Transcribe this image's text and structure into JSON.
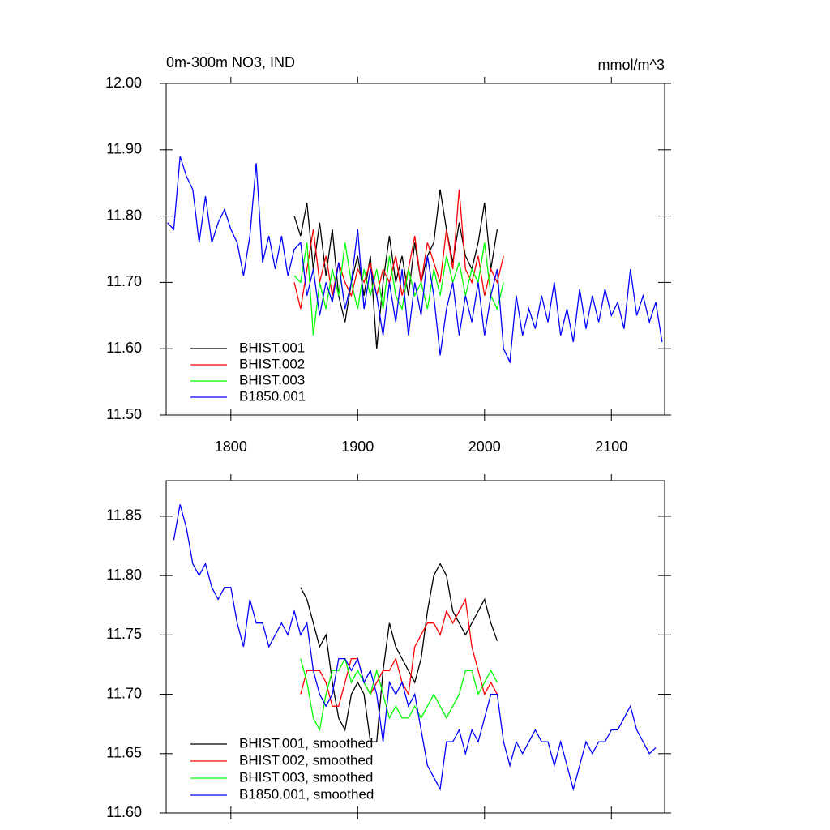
{
  "chart_data": [
    {
      "type": "line",
      "title": "0m-300m NO3, IND",
      "units": "mmol/m^3",
      "x": [
        1750,
        1755,
        1760,
        1765,
        1770,
        1775,
        1780,
        1785,
        1790,
        1795,
        1800,
        1805,
        1810,
        1815,
        1820,
        1825,
        1830,
        1835,
        1840,
        1845,
        1850,
        1855,
        1860,
        1865,
        1870,
        1875,
        1880,
        1885,
        1890,
        1895,
        1900,
        1905,
        1910,
        1915,
        1920,
        1925,
        1930,
        1935,
        1940,
        1945,
        1950,
        1955,
        1960,
        1965,
        1970,
        1975,
        1980,
        1985,
        1990,
        1995,
        2000,
        2005,
        2010,
        2015,
        2020,
        2025,
        2030,
        2035,
        2040,
        2045,
        2050,
        2055,
        2060,
        2065,
        2070,
        2075,
        2080,
        2085,
        2090,
        2095,
        2100,
        2105,
        2110,
        2115,
        2120,
        2125,
        2130,
        2135,
        2140
      ],
      "xlim": [
        1749,
        2142
      ],
      "xticks": [
        1800,
        1900,
        2000,
        2100
      ],
      "xtick_labels": true,
      "ylim": [
        11.5,
        12.0
      ],
      "yticks": [
        {
          "value": 11.5,
          "label": "11.50"
        },
        {
          "value": 11.6,
          "label": "11.60"
        },
        {
          "value": 11.7,
          "label": "11.70"
        },
        {
          "value": 11.8,
          "label": "11.80"
        },
        {
          "value": 11.9,
          "label": "11.90"
        },
        {
          "value": 12.0,
          "label": "12.00"
        }
      ],
      "legend": "lower-left",
      "series": [
        {
          "name": "BHIST.001",
          "color": "#000000",
          "values": [
            null,
            null,
            null,
            null,
            null,
            null,
            null,
            null,
            null,
            null,
            null,
            null,
            null,
            null,
            null,
            null,
            null,
            null,
            null,
            null,
            11.8,
            11.77,
            11.82,
            11.72,
            11.79,
            11.71,
            11.78,
            11.68,
            11.64,
            11.7,
            11.74,
            11.68,
            11.74,
            11.6,
            11.7,
            11.77,
            11.7,
            11.74,
            11.68,
            11.76,
            11.7,
            11.74,
            11.76,
            11.84,
            11.78,
            11.73,
            11.79,
            11.74,
            11.72,
            11.76,
            11.82,
            11.72,
            11.78,
            null,
            null,
            null,
            null,
            null,
            null,
            null,
            null,
            null,
            null,
            null,
            null,
            null,
            null,
            null,
            null,
            null,
            null,
            null,
            null,
            null,
            null,
            null,
            null,
            null,
            null
          ]
        },
        {
          "name": "BHIST.002",
          "color": "#ff0000",
          "values": [
            null,
            null,
            null,
            null,
            null,
            null,
            null,
            null,
            null,
            null,
            null,
            null,
            null,
            null,
            null,
            null,
            null,
            null,
            null,
            null,
            11.7,
            11.66,
            11.72,
            11.78,
            11.7,
            11.74,
            11.68,
            11.73,
            11.7,
            11.68,
            11.72,
            11.7,
            11.73,
            11.68,
            11.72,
            11.7,
            11.74,
            11.68,
            11.72,
            11.77,
            11.7,
            11.76,
            11.73,
            11.7,
            11.78,
            11.72,
            11.84,
            11.72,
            11.7,
            11.74,
            11.68,
            11.72,
            11.7,
            11.74,
            null,
            null,
            null,
            null,
            null,
            null,
            null,
            null,
            null,
            null,
            null,
            null,
            null,
            null,
            null,
            null,
            null,
            null,
            null,
            null,
            null,
            null,
            null,
            null,
            null
          ]
        },
        {
          "name": "BHIST.003",
          "color": "#00ff00",
          "values": [
            null,
            null,
            null,
            null,
            null,
            null,
            null,
            null,
            null,
            null,
            null,
            null,
            null,
            null,
            null,
            null,
            null,
            null,
            null,
            null,
            11.71,
            11.7,
            11.76,
            11.62,
            11.7,
            11.66,
            11.72,
            11.68,
            11.76,
            11.7,
            11.66,
            11.72,
            11.68,
            11.72,
            11.66,
            11.74,
            11.68,
            11.66,
            11.72,
            11.68,
            11.7,
            11.66,
            11.72,
            11.68,
            11.74,
            11.7,
            11.73,
            11.68,
            11.72,
            11.7,
            11.76,
            11.68,
            11.66,
            11.7,
            null,
            null,
            null,
            null,
            null,
            null,
            null,
            null,
            null,
            null,
            null,
            null,
            null,
            null,
            null,
            null,
            null,
            null,
            null,
            null,
            null,
            null,
            null,
            null,
            null
          ]
        },
        {
          "name": "B1850.001",
          "color": "#0000ff",
          "values": [
            11.79,
            11.78,
            11.89,
            11.86,
            11.84,
            11.76,
            11.83,
            11.76,
            11.79,
            11.81,
            11.78,
            11.76,
            11.71,
            11.77,
            11.88,
            11.73,
            11.77,
            11.72,
            11.77,
            11.71,
            11.75,
            11.76,
            11.68,
            11.72,
            11.65,
            11.7,
            11.67,
            11.73,
            11.66,
            11.7,
            11.78,
            11.66,
            11.72,
            11.68,
            11.62,
            11.7,
            11.64,
            11.72,
            11.62,
            11.7,
            11.65,
            11.74,
            11.68,
            11.59,
            11.66,
            11.7,
            11.62,
            11.68,
            11.64,
            11.7,
            11.62,
            11.68,
            11.72,
            11.6,
            11.58,
            11.68,
            11.62,
            11.66,
            11.63,
            11.68,
            11.64,
            11.7,
            11.62,
            11.66,
            11.61,
            11.69,
            11.63,
            11.68,
            11.64,
            11.69,
            11.65,
            11.67,
            11.63,
            11.72,
            11.65,
            11.68,
            11.64,
            11.67,
            11.61
          ]
        }
      ]
    },
    {
      "type": "line",
      "x": [
        1750,
        1755,
        1760,
        1765,
        1770,
        1775,
        1780,
        1785,
        1790,
        1795,
        1800,
        1805,
        1810,
        1815,
        1820,
        1825,
        1830,
        1835,
        1840,
        1845,
        1850,
        1855,
        1860,
        1865,
        1870,
        1875,
        1880,
        1885,
        1890,
        1895,
        1900,
        1905,
        1910,
        1915,
        1920,
        1925,
        1930,
        1935,
        1940,
        1945,
        1950,
        1955,
        1960,
        1965,
        1970,
        1975,
        1980,
        1985,
        1990,
        1995,
        2000,
        2005,
        2010,
        2015,
        2020,
        2025,
        2030,
        2035,
        2040,
        2045,
        2050,
        2055,
        2060,
        2065,
        2070,
        2075,
        2080,
        2085,
        2090,
        2095,
        2100,
        2105,
        2110,
        2115,
        2120,
        2125,
        2130,
        2135,
        2140
      ],
      "xlim": [
        1749,
        2142
      ],
      "xticks": [
        1800,
        1900,
        2000,
        2100
      ],
      "xtick_labels": false,
      "ylim": [
        11.6,
        11.88
      ],
      "yticks": [
        {
          "value": 11.6,
          "label": "11.60"
        },
        11.65,
        {
          "value": 11.7,
          "label": "11.70"
        },
        11.75,
        {
          "value": 11.8,
          "label": "11.80"
        },
        11.85
      ],
      "legend": "lower-left",
      "series": [
        {
          "name": "BHIST.001, smoothed",
          "color": "#000000",
          "values": [
            null,
            null,
            null,
            null,
            null,
            null,
            null,
            null,
            null,
            null,
            null,
            null,
            null,
            null,
            null,
            null,
            null,
            null,
            null,
            null,
            null,
            11.79,
            11.78,
            11.76,
            11.74,
            11.75,
            11.71,
            11.68,
            11.67,
            11.7,
            11.71,
            11.7,
            11.66,
            11.66,
            11.72,
            11.76,
            11.74,
            11.73,
            11.72,
            11.71,
            11.73,
            11.77,
            11.8,
            11.81,
            11.8,
            11.77,
            11.76,
            11.75,
            11.76,
            11.77,
            11.78,
            11.76,
            11.745,
            null,
            null,
            null,
            null,
            null,
            null,
            null,
            null,
            null,
            null,
            null,
            null,
            null,
            null,
            null,
            null,
            null,
            null,
            null,
            null,
            null,
            null,
            null,
            null,
            null,
            null
          ]
        },
        {
          "name": "BHIST.002, smoothed",
          "color": "#ff0000",
          "values": [
            null,
            null,
            null,
            null,
            null,
            null,
            null,
            null,
            null,
            null,
            null,
            null,
            null,
            null,
            null,
            null,
            null,
            null,
            null,
            null,
            null,
            11.7,
            11.72,
            11.72,
            11.72,
            11.71,
            11.69,
            11.69,
            11.71,
            11.73,
            11.73,
            11.71,
            11.7,
            11.71,
            11.72,
            11.72,
            11.73,
            11.71,
            11.7,
            11.74,
            11.75,
            11.76,
            11.76,
            11.75,
            11.77,
            11.76,
            11.77,
            11.78,
            11.74,
            11.72,
            11.7,
            11.71,
            11.7,
            null,
            null,
            null,
            null,
            null,
            null,
            null,
            null,
            null,
            null,
            null,
            null,
            null,
            null,
            null,
            null,
            null,
            null,
            null,
            null,
            null,
            null,
            null,
            null,
            null,
            null
          ]
        },
        {
          "name": "BHIST.003, smoothed",
          "color": "#00ff00",
          "values": [
            null,
            null,
            null,
            null,
            null,
            null,
            null,
            null,
            null,
            null,
            null,
            null,
            null,
            null,
            null,
            null,
            null,
            null,
            null,
            null,
            null,
            11.73,
            11.71,
            11.68,
            11.67,
            11.7,
            11.72,
            11.72,
            11.73,
            11.71,
            11.72,
            11.71,
            11.7,
            11.72,
            11.7,
            11.68,
            11.69,
            11.68,
            11.68,
            11.69,
            11.68,
            11.69,
            11.7,
            11.69,
            11.68,
            11.69,
            11.7,
            11.72,
            11.72,
            11.7,
            11.71,
            11.72,
            11.71,
            null,
            null,
            null,
            null,
            null,
            null,
            null,
            null,
            null,
            null,
            null,
            null,
            null,
            null,
            null,
            null,
            null,
            null,
            null,
            null,
            null,
            null,
            null,
            null,
            null,
            null
          ]
        },
        {
          "name": "B1850.001, smoothed",
          "color": "#0000ff",
          "values": [
            null,
            11.83,
            11.86,
            11.84,
            11.81,
            11.8,
            11.81,
            11.79,
            11.78,
            11.79,
            11.79,
            11.76,
            11.74,
            11.78,
            11.76,
            11.76,
            11.74,
            11.75,
            11.76,
            11.75,
            11.77,
            11.75,
            11.76,
            11.72,
            11.7,
            11.69,
            11.7,
            11.73,
            11.73,
            11.72,
            11.73,
            11.71,
            11.72,
            11.7,
            11.66,
            11.71,
            11.7,
            11.71,
            11.69,
            11.7,
            11.67,
            11.64,
            11.63,
            11.62,
            11.66,
            11.66,
            11.67,
            11.65,
            11.67,
            11.66,
            11.68,
            11.7,
            11.7,
            11.66,
            11.64,
            11.66,
            11.65,
            11.66,
            11.67,
            11.66,
            11.66,
            11.64,
            11.66,
            11.64,
            11.62,
            11.64,
            11.66,
            11.65,
            11.66,
            11.66,
            11.67,
            11.67,
            11.68,
            11.69,
            11.67,
            11.66,
            11.65,
            11.655,
            null
          ]
        }
      ]
    }
  ]
}
